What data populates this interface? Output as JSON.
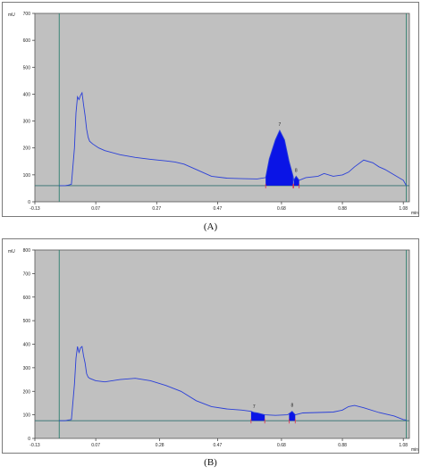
{
  "charts": {
    "a": {
      "caption": "(A)",
      "chart_data": {
        "type": "line",
        "ylabel": "mU",
        "xlabel_right": "min",
        "xticks": [
          "-0.13",
          "0.07",
          "0.27",
          "0.47",
          "0.68",
          "0.88",
          "1.08"
        ],
        "yticks": [
          "0",
          "100",
          "200",
          "300",
          "400",
          "500",
          "600",
          "700"
        ],
        "xlim": [
          -0.13,
          1.1
        ],
        "ylim": [
          0,
          700
        ],
        "baseline": 60,
        "peaks": [
          {
            "label": "7",
            "start": 0.628,
            "end": 0.718,
            "apex": 0.674,
            "height": 265
          },
          {
            "label": "8",
            "start": 0.72,
            "end": 0.738,
            "apex": 0.728,
            "height": 95
          }
        ],
        "series": [
          {
            "x": [
              -0.05,
              -0.03,
              -0.02,
              -0.01,
              0.0,
              0.005,
              0.01,
              0.015,
              0.02,
              0.025,
              0.03,
              0.035,
              0.04,
              0.045,
              0.05,
              0.06,
              0.08,
              0.1,
              0.15,
              0.2,
              0.25,
              0.3,
              0.33,
              0.36,
              0.4,
              0.45,
              0.5,
              0.55,
              0.6,
              0.628,
              0.64,
              0.66,
              0.674,
              0.69,
              0.705,
              0.718,
              0.72,
              0.728,
              0.738,
              0.76,
              0.8,
              0.82,
              0.85,
              0.88,
              0.9,
              0.92,
              0.95,
              0.98,
              1.0,
              1.02,
              1.05,
              1.08,
              1.09
            ],
            "y": [
              60,
              60,
              62,
              65,
              200,
              330,
              390,
              380,
              395,
              405,
              360,
              320,
              270,
              240,
              225,
              215,
              200,
              190,
              175,
              165,
              158,
              152,
              148,
              140,
              120,
              95,
              88,
              86,
              85,
              90,
              160,
              230,
              265,
              230,
              150,
              95,
              80,
              95,
              80,
              90,
              95,
              105,
              95,
              100,
              110,
              130,
              155,
              145,
              130,
              120,
              100,
              80,
              60
            ]
          }
        ]
      }
    },
    "b": {
      "caption": "(B)",
      "chart_data": {
        "type": "line",
        "ylabel": "mU",
        "xlabel_right": "min",
        "xticks": [
          "-0.13",
          "0.07",
          "0.28",
          "0.47",
          "0.68",
          "0.88",
          "1.08"
        ],
        "yticks": [
          "0",
          "100",
          "200",
          "300",
          "400",
          "500",
          "600",
          "700",
          "800"
        ],
        "xlim": [
          -0.13,
          1.1
        ],
        "ylim": [
          0,
          800
        ],
        "baseline": 75,
        "peaks": [
          {
            "label": "7",
            "start": 0.58,
            "end": 0.625,
            "apex": 0.59,
            "height": 110
          },
          {
            "label": "8",
            "start": 0.705,
            "end": 0.725,
            "apex": 0.715,
            "height": 115
          }
        ],
        "series": [
          {
            "x": [
              -0.05,
              -0.03,
              -0.02,
              -0.01,
              0.0,
              0.005,
              0.01,
              0.015,
              0.02,
              0.025,
              0.03,
              0.035,
              0.04,
              0.045,
              0.05,
              0.07,
              0.1,
              0.15,
              0.2,
              0.25,
              0.3,
              0.35,
              0.4,
              0.45,
              0.5,
              0.55,
              0.58,
              0.59,
              0.6,
              0.625,
              0.66,
              0.7,
              0.705,
              0.715,
              0.725,
              0.75,
              0.8,
              0.85,
              0.88,
              0.9,
              0.92,
              0.95,
              1.0,
              1.05,
              1.08,
              1.09
            ],
            "y": [
              75,
              75,
              78,
              80,
              230,
              340,
              390,
              365,
              385,
              390,
              350,
              320,
              275,
              260,
              255,
              245,
              240,
              250,
              255,
              245,
              225,
              200,
              160,
              135,
              125,
              120,
              115,
              110,
              108,
              100,
              98,
              100,
              105,
              115,
              100,
              108,
              110,
              112,
              120,
              135,
              140,
              130,
              110,
              95,
              80,
              78
            ]
          }
        ]
      }
    }
  }
}
